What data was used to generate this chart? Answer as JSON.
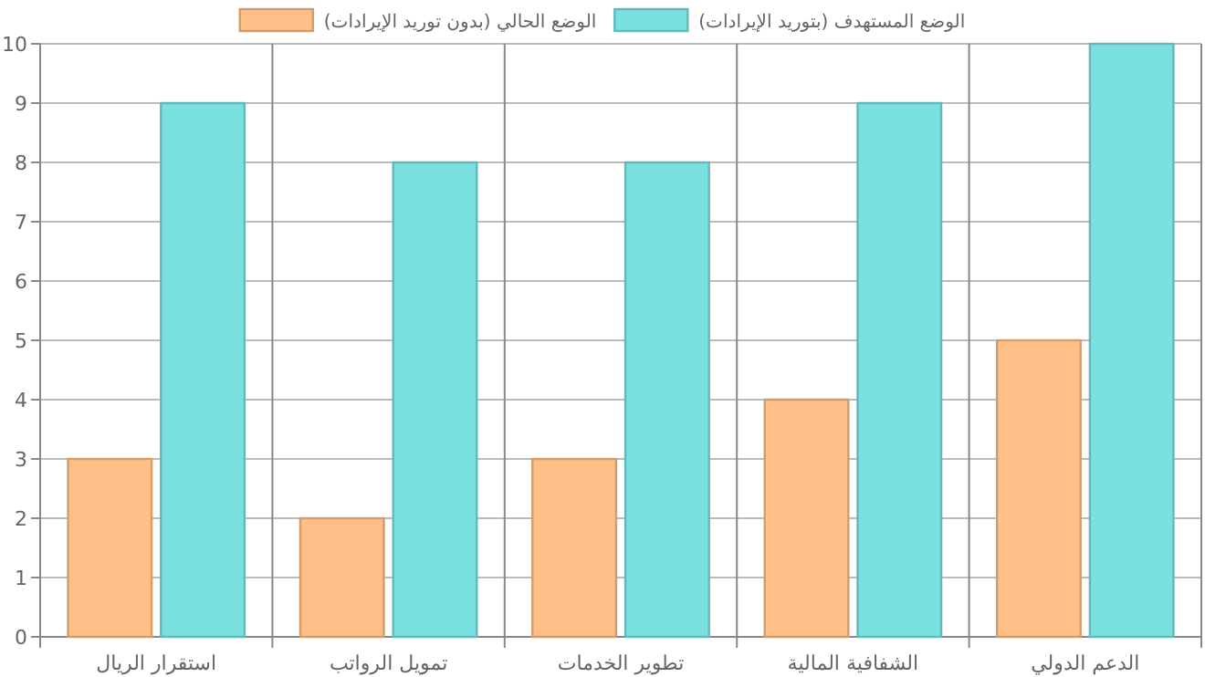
{
  "chart_data": {
    "type": "bar",
    "categories": [
      "استقرار الريال",
      "تمويل الرواتب",
      "تطوير الخدمات",
      "الشفافية المالية",
      "الدعم الدولي"
    ],
    "series": [
      {
        "name": "الوضع الحالي (بدون توريد الإيرادات)",
        "color": "#ffbf87",
        "values": [
          3,
          2,
          3,
          4,
          5
        ]
      },
      {
        "name": "الوضع المستهدف (بتوريد الإيرادات)",
        "color": "#7ae0e0",
        "values": [
          9,
          8,
          8,
          9,
          10
        ]
      }
    ],
    "ylim": [
      0,
      10
    ],
    "yticks": [
      0,
      1,
      2,
      3,
      4,
      5,
      6,
      7,
      8,
      9,
      10
    ],
    "grid": true,
    "legend": "top"
  }
}
